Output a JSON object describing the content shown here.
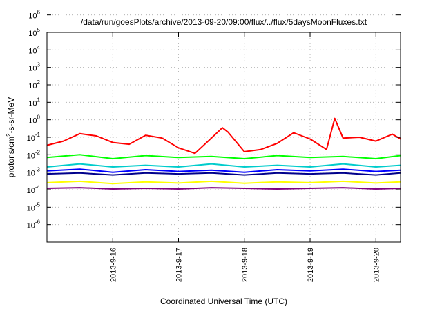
{
  "chart_data": {
    "type": "line",
    "title": "/data/run/goesPlots/archive/2013-09-20/09:00/flux/../flux/5daysMoonFluxes.txt",
    "xlabel": "Coordinated Universal Time (UTC)",
    "ylabel": "protons/cm²-s-sr-MeV",
    "ylabel_parts": {
      "pre": "protons/cm",
      "sup": "2",
      "post": "-s-sr-MeV"
    },
    "y_scale": "log",
    "ylim": [
      1e-06,
      1000000.0
    ],
    "xlim": [
      "2013-09-15 00:00",
      "2013-09-20 09:00"
    ],
    "grid": true,
    "x_ticks": [
      {
        "label": "2013-9-16",
        "date": "2013-09-16"
      },
      {
        "label": "2013-9-17",
        "date": "2013-09-17"
      },
      {
        "label": "2013-9-18",
        "date": "2013-09-18"
      },
      {
        "label": "2013-9-19",
        "date": "2013-09-19"
      },
      {
        "label": "2013-9-20",
        "date": "2013-09-20"
      }
    ],
    "y_ticks": [
      {
        "base": "10",
        "exp": "6"
      },
      {
        "base": "10",
        "exp": "5"
      },
      {
        "base": "10",
        "exp": "4"
      },
      {
        "base": "10",
        "exp": "3"
      },
      {
        "base": "10",
        "exp": "2"
      },
      {
        "base": "10",
        "exp": "1"
      },
      {
        "base": "10",
        "exp": "0"
      },
      {
        "base": "10",
        "exp": "-1"
      },
      {
        "base": "10",
        "exp": "-2"
      },
      {
        "base": "10",
        "exp": "-3"
      },
      {
        "base": "10",
        "exp": "-4"
      },
      {
        "base": "10",
        "exp": "-5"
      },
      {
        "base": "10",
        "exp": "-6"
      }
    ],
    "series": [
      {
        "color": "#ff0000",
        "x": [
          "2013-09-15 00:00",
          "2013-09-15 06:00",
          "2013-09-15 12:00",
          "2013-09-15 18:00",
          "2013-09-16 00:00",
          "2013-09-16 06:00",
          "2013-09-16 12:00",
          "2013-09-16 18:00",
          "2013-09-17 00:00",
          "2013-09-17 06:00",
          "2013-09-17 12:00",
          "2013-09-17 16:00",
          "2013-09-17 18:00",
          "2013-09-18 00:00",
          "2013-09-18 06:00",
          "2013-09-18 12:00",
          "2013-09-18 18:00",
          "2013-09-19 00:00",
          "2013-09-19 06:00",
          "2013-09-19 09:00",
          "2013-09-19 12:00",
          "2013-09-19 18:00",
          "2013-09-20 00:00",
          "2013-09-20 06:00",
          "2013-09-20 09:00"
        ],
        "values": [
          0.35,
          0.6,
          1.6,
          1.2,
          0.5,
          0.4,
          1.3,
          0.9,
          0.25,
          0.12,
          0.9,
          3.5,
          2.0,
          0.15,
          0.2,
          0.45,
          1.8,
          0.8,
          0.2,
          12,
          0.9,
          1.0,
          0.6,
          1.5,
          0.8
        ]
      },
      {
        "color": "#00ff00",
        "x": [
          "2013-09-15 00:00",
          "2013-09-15 12:00",
          "2013-09-16 00:00",
          "2013-09-16 12:00",
          "2013-09-17 00:00",
          "2013-09-17 12:00",
          "2013-09-18 00:00",
          "2013-09-18 12:00",
          "2013-09-19 00:00",
          "2013-09-19 12:00",
          "2013-09-20 00:00",
          "2013-09-20 09:00"
        ],
        "values": [
          0.07,
          0.1,
          0.06,
          0.09,
          0.07,
          0.08,
          0.06,
          0.09,
          0.07,
          0.08,
          0.06,
          0.09
        ]
      },
      {
        "color": "#00cccc",
        "x": [
          "2013-09-15 00:00",
          "2013-09-15 12:00",
          "2013-09-16 00:00",
          "2013-09-16 12:00",
          "2013-09-17 00:00",
          "2013-09-17 12:00",
          "2013-09-18 00:00",
          "2013-09-18 12:00",
          "2013-09-19 00:00",
          "2013-09-19 12:00",
          "2013-09-20 00:00",
          "2013-09-20 09:00"
        ],
        "values": [
          0.02,
          0.03,
          0.02,
          0.025,
          0.02,
          0.03,
          0.02,
          0.025,
          0.02,
          0.03,
          0.02,
          0.025
        ]
      },
      {
        "color": "#0000ff",
        "x": [
          "2013-09-15 00:00",
          "2013-09-15 12:00",
          "2013-09-16 00:00",
          "2013-09-16 12:00",
          "2013-09-17 00:00",
          "2013-09-17 12:00",
          "2013-09-18 00:00",
          "2013-09-18 12:00",
          "2013-09-19 00:00",
          "2013-09-19 12:00",
          "2013-09-20 00:00",
          "2013-09-20 09:00"
        ],
        "values": [
          0.012,
          0.015,
          0.01,
          0.014,
          0.011,
          0.013,
          0.01,
          0.014,
          0.012,
          0.015,
          0.011,
          0.013
        ]
      },
      {
        "color": "#00008b",
        "x": [
          "2013-09-15 00:00",
          "2013-09-15 12:00",
          "2013-09-16 00:00",
          "2013-09-16 12:00",
          "2013-09-17 00:00",
          "2013-09-17 12:00",
          "2013-09-18 00:00",
          "2013-09-18 12:00",
          "2013-09-19 00:00",
          "2013-09-19 12:00",
          "2013-09-20 00:00",
          "2013-09-20 09:00"
        ],
        "values": [
          0.008,
          0.009,
          0.007,
          0.009,
          0.008,
          0.009,
          0.007,
          0.009,
          0.008,
          0.009,
          0.007,
          0.009
        ]
      },
      {
        "color": "#ffff00",
        "x": [
          "2013-09-15 00:00",
          "2013-09-15 12:00",
          "2013-09-16 00:00",
          "2013-09-16 12:00",
          "2013-09-17 00:00",
          "2013-09-17 12:00",
          "2013-09-18 00:00",
          "2013-09-18 12:00",
          "2013-09-19 00:00",
          "2013-09-19 12:00",
          "2013-09-20 00:00",
          "2013-09-20 09:00"
        ],
        "values": [
          0.0025,
          0.003,
          0.0022,
          0.0028,
          0.0024,
          0.003,
          0.0023,
          0.0028,
          0.0025,
          0.003,
          0.0024,
          0.0028
        ]
      },
      {
        "color": "#800080",
        "x": [
          "2013-09-15 00:00",
          "2013-09-15 12:00",
          "2013-09-16 00:00",
          "2013-09-16 12:00",
          "2013-09-17 00:00",
          "2013-09-17 12:00",
          "2013-09-18 00:00",
          "2013-09-18 12:00",
          "2013-09-19 00:00",
          "2013-09-19 12:00",
          "2013-09-20 00:00",
          "2013-09-20 09:00"
        ],
        "values": [
          0.0012,
          0.0013,
          0.0011,
          0.0012,
          0.0011,
          0.0013,
          0.0012,
          0.0011,
          0.0012,
          0.0013,
          0.0011,
          0.0012
        ]
      }
    ]
  }
}
